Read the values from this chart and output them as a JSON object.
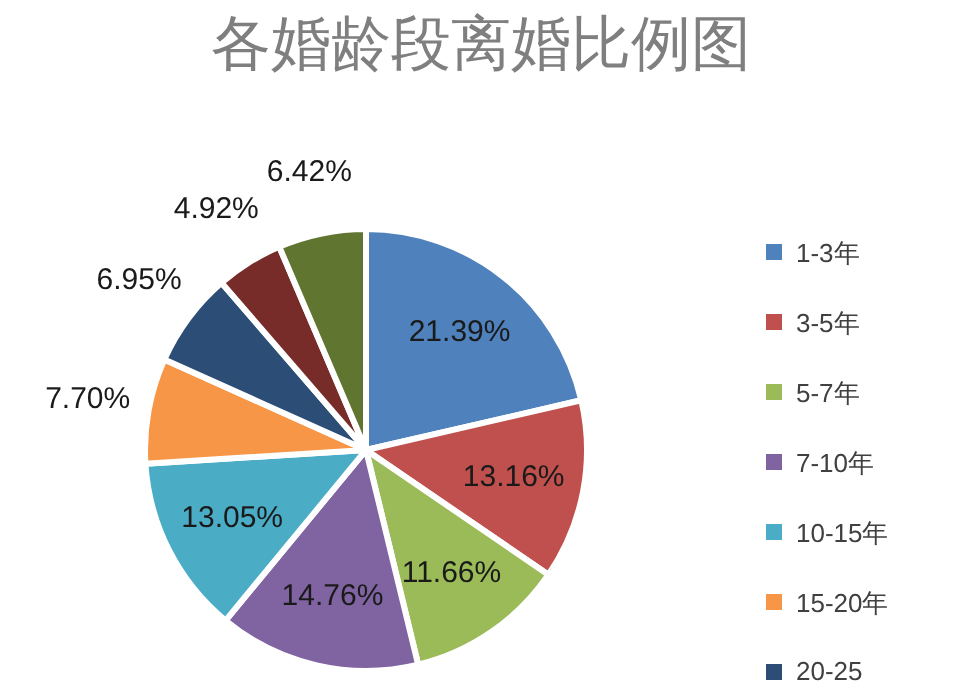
{
  "chart_data": {
    "type": "pie",
    "title": "各婚龄段离婚比例图",
    "categories": [
      "1-3年",
      "3-5年",
      "5-7年",
      "7-10年",
      "10-15年",
      "15-20年",
      "20-25",
      null,
      null
    ],
    "values": [
      21.39,
      13.16,
      11.66,
      14.76,
      13.05,
      7.7,
      6.95,
      4.92,
      6.42
    ],
    "colors": [
      "#4f81bd",
      "#c0504d",
      "#9bbb59",
      "#8064a2",
      "#4bacc6",
      "#f79646",
      "#2c4d75",
      "#772c2a",
      "#5f7530"
    ],
    "value_labels": [
      "21.39%",
      "13.16%",
      "11.66%",
      "14.76%",
      "13.05%",
      "7.70%",
      "6.95%",
      "4.92%",
      "6.42%"
    ],
    "legend": "right"
  }
}
